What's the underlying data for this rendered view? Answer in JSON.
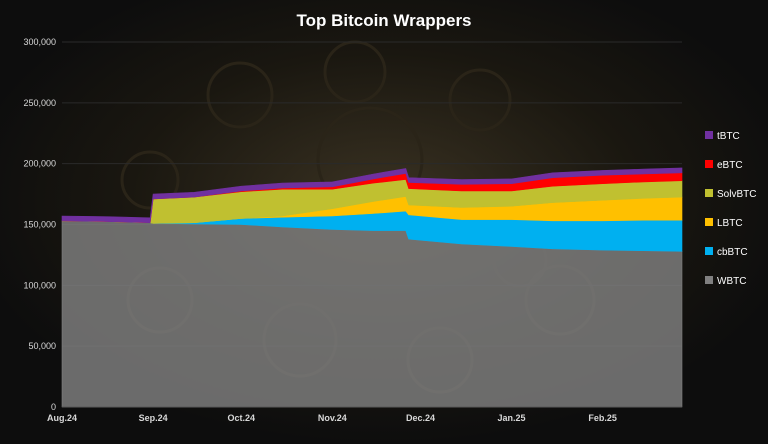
{
  "chart_data": {
    "type": "area",
    "stacked": true,
    "title": "Top Bitcoin Wrappers",
    "xlabel": "",
    "ylabel": "",
    "ylim": [
      0,
      300000
    ],
    "yticks": [
      0,
      50000,
      100000,
      150000,
      200000,
      250000,
      300000
    ],
    "ytick_labels": [
      "0",
      "50,000",
      "100,000",
      "150,000",
      "200,000",
      "250,000",
      "300,000"
    ],
    "x_range": [
      "2024-08-01",
      "2025-02-28"
    ],
    "xticks": [
      {
        "date": "2024-08-01",
        "label": "Aug.24"
      },
      {
        "date": "2024-09-01",
        "label": "Sep.24"
      },
      {
        "date": "2024-10-01",
        "label": "Oct.24"
      },
      {
        "date": "2024-11-01",
        "label": "Nov.24"
      },
      {
        "date": "2024-12-01",
        "label": "Dec.24"
      },
      {
        "date": "2025-01-01",
        "label": "Jan.25"
      },
      {
        "date": "2025-02-01",
        "label": "Feb.25"
      }
    ],
    "grid": true,
    "legend_position": "right",
    "x": [
      "2024-08-01",
      "2024-08-15",
      "2024-08-31",
      "2024-09-01",
      "2024-09-15",
      "2024-10-01",
      "2024-10-15",
      "2024-11-01",
      "2024-11-15",
      "2024-11-26",
      "2024-11-27",
      "2024-12-15",
      "2025-01-01",
      "2025-01-15",
      "2025-02-01",
      "2025-02-15",
      "2025-02-28"
    ],
    "series": [
      {
        "name": "WBTC",
        "color": "#808080",
        "values": [
          153000,
          152500,
          151500,
          151000,
          150500,
          150000,
          148000,
          146000,
          145000,
          145000,
          138000,
          134000,
          132000,
          130000,
          129000,
          128500,
          128000
        ]
      },
      {
        "name": "cbBTC",
        "color": "#00b0f0",
        "values": [
          0,
          0,
          0,
          0,
          1000,
          5000,
          8000,
          11000,
          14000,
          16000,
          20000,
          20000,
          22000,
          23000,
          24000,
          25000,
          25500
        ]
      },
      {
        "name": "LBTC",
        "color": "#ffc000",
        "values": [
          0,
          0,
          0,
          0,
          0,
          0,
          1000,
          6000,
          10000,
          12000,
          8000,
          10000,
          11000,
          15000,
          17000,
          18000,
          19000
        ]
      },
      {
        "name": "SolvBTC",
        "color": "#c0c030",
        "values": [
          0,
          0,
          0,
          20000,
          21000,
          22000,
          22000,
          16000,
          15000,
          14000,
          13500,
          13500,
          12500,
          13500,
          13500,
          13500,
          13500
        ]
      },
      {
        "name": "eBTC",
        "color": "#ff0000",
        "values": [
          0,
          0,
          0,
          0,
          0,
          500,
          1000,
          2000,
          3500,
          5000,
          5000,
          5500,
          6000,
          7000,
          7000,
          6500,
          6500
        ]
      },
      {
        "name": "tBTC",
        "color": "#7030a0",
        "values": [
          4000,
          4000,
          4000,
          4000,
          4000,
          4000,
          4000,
          4000,
          4000,
          4000,
          4000,
          4000,
          4000,
          4000,
          4000,
          4000,
          4000
        ]
      }
    ]
  }
}
